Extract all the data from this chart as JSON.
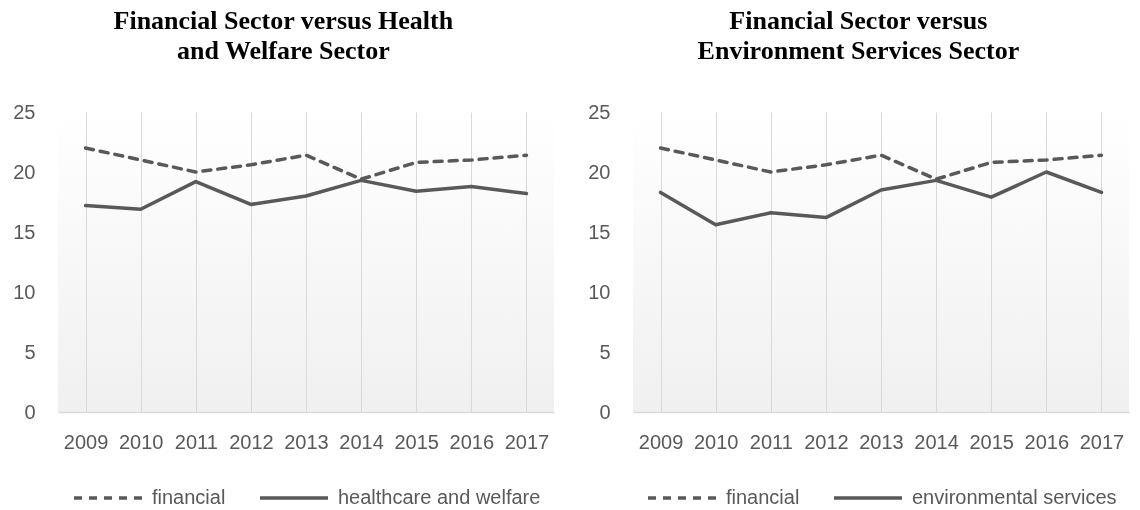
{
  "chart_data": [
    {
      "type": "line",
      "title": "Financial Sector versus Health and Welfare Sector",
      "categories": [
        "2009",
        "2010",
        "2011",
        "2012",
        "2013",
        "2014",
        "2015",
        "2016",
        "2017"
      ],
      "series": [
        {
          "name": "financial",
          "color": "#595959",
          "line_style": "dashed",
          "values": [
            22,
            21,
            20,
            20.6,
            21.4,
            19.4,
            20.8,
            21,
            21.4
          ]
        },
        {
          "name": "healthcare and welfare",
          "color": "#595959",
          "line_style": "solid",
          "values": [
            17.2,
            16.9,
            19.2,
            17.3,
            18,
            19.3,
            18.4,
            18.8,
            18.2
          ]
        }
      ],
      "ylim": [
        0,
        25
      ],
      "yticks": [
        0,
        5,
        10,
        15,
        20,
        25
      ],
      "grid": "x",
      "legend": "bottom"
    },
    {
      "type": "line",
      "title": "Financial Sector versus Environment Services Sector",
      "categories": [
        "2009",
        "2010",
        "2011",
        "2012",
        "2013",
        "2014",
        "2015",
        "2016",
        "2017"
      ],
      "series": [
        {
          "name": "financial",
          "color": "#595959",
          "line_style": "dashed",
          "values": [
            22,
            21,
            20,
            20.6,
            21.4,
            19.4,
            20.8,
            21,
            21.4
          ]
        },
        {
          "name": "environmental services",
          "color": "#595959",
          "line_style": "solid",
          "values": [
            18.3,
            15.6,
            16.6,
            16.2,
            18.5,
            19.3,
            17.9,
            20,
            18.3
          ]
        }
      ],
      "ylim": [
        0,
        25
      ],
      "yticks": [
        0,
        5,
        10,
        15,
        20,
        25
      ],
      "grid": "x",
      "legend": "bottom"
    }
  ]
}
